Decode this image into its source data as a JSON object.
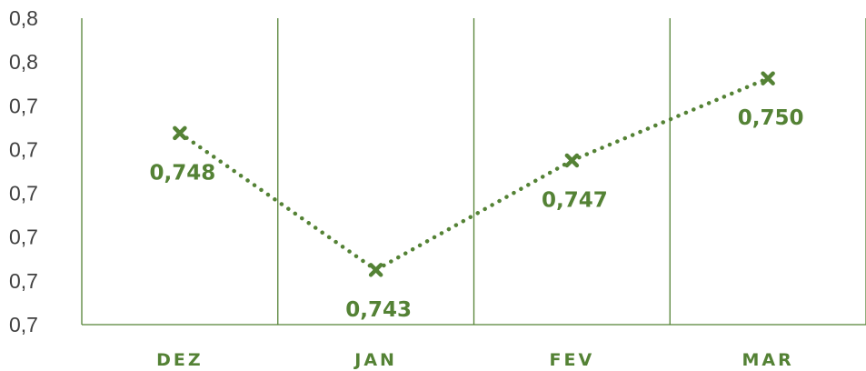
{
  "chart_data": {
    "type": "line",
    "title": "",
    "xlabel": "",
    "ylabel": "",
    "categories": [
      "DEZ",
      "JAN",
      "FEV",
      "MAR"
    ],
    "series": [
      {
        "values": [
          0.748,
          0.743,
          0.747,
          0.75
        ],
        "data_labels": [
          "0,748",
          "0,743",
          "0,747",
          "0,750"
        ],
        "line_style": "dotted",
        "marker": "x",
        "color": "#548235"
      }
    ],
    "y_tick_labels": [
      "0,7",
      "0,7",
      "0,7",
      "0,7",
      "0,7",
      "0,7",
      "0,8",
      "0,8"
    ],
    "ylim": [
      0.741,
      0.7522
    ],
    "grid": "vertical lines between categories",
    "legend": "none",
    "colors": {
      "accent": "#548235",
      "axis_text": "#404040"
    }
  }
}
